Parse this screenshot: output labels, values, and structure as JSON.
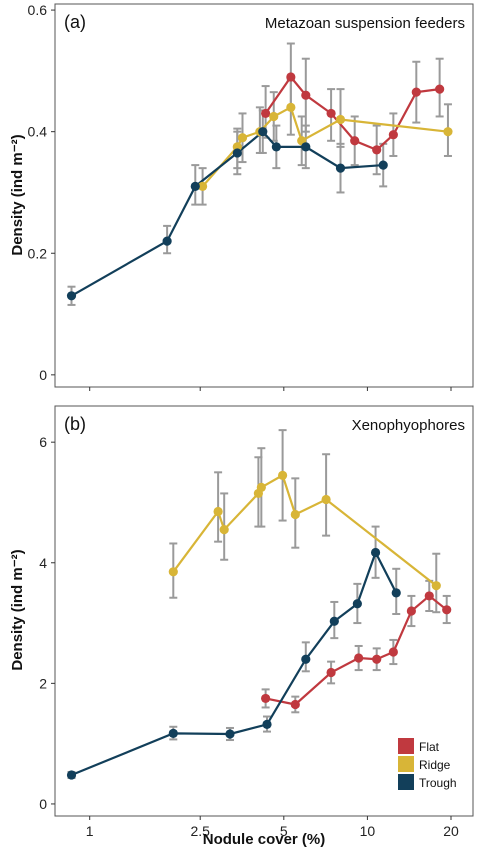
{
  "figure": {
    "ylabel": "Density (ind m⁻²)",
    "xlabel": "Nodule cover (%)",
    "legend": {
      "placement": "bottom-right of panel (b)",
      "entries": [
        {
          "name": "Flat",
          "color": "#c0393f"
        },
        {
          "name": "Ridge",
          "color": "#d8b537"
        },
        {
          "name": "Trough",
          "color": "#123f5a"
        }
      ]
    }
  },
  "colors": {
    "flat": "#c0393f",
    "ridge": "#d8b537",
    "trough": "#123f5a",
    "errorbar": "#9a9a9a",
    "panel_border": "#555555"
  },
  "chart_data": [
    {
      "type": "line",
      "panel": "(a)",
      "title": "Metazoan suspension feeders",
      "ylabel": "Density (ind m⁻²)",
      "xlabel": "Nodule cover (%)",
      "xscale": "log",
      "xlim": [
        0.75,
        24
      ],
      "ylim": [
        -0.02,
        0.61
      ],
      "xticks": [
        1,
        2.5,
        5,
        10,
        20
      ],
      "xtick_labels": [
        "1",
        "2.5",
        "5",
        "10",
        "20"
      ],
      "yticks": [
        0,
        0.2,
        0.4,
        0.6
      ],
      "ytick_labels": [
        "0",
        "0.2",
        "0.4",
        "0.6"
      ],
      "grid": false,
      "series": [
        {
          "name": "Flat",
          "color": "#c0393f",
          "points": [
            {
              "x": 4.3,
              "y": 0.43,
              "lo": 0.39,
              "hi": 0.475
            },
            {
              "x": 5.3,
              "y": 0.49,
              "lo": 0.44,
              "hi": 0.545
            },
            {
              "x": 6.0,
              "y": 0.46,
              "lo": 0.4,
              "hi": 0.52
            },
            {
              "x": 7.4,
              "y": 0.43,
              "lo": 0.385,
              "hi": 0.47
            },
            {
              "x": 9.0,
              "y": 0.385,
              "lo": 0.345,
              "hi": 0.425
            },
            {
              "x": 10.8,
              "y": 0.37,
              "lo": 0.33,
              "hi": 0.41
            },
            {
              "x": 12.4,
              "y": 0.395,
              "lo": 0.36,
              "hi": 0.43
            },
            {
              "x": 15.0,
              "y": 0.465,
              "lo": 0.415,
              "hi": 0.515
            },
            {
              "x": 18.2,
              "y": 0.47,
              "lo": 0.425,
              "hi": 0.52
            }
          ]
        },
        {
          "name": "Ridge",
          "color": "#d8b537",
          "points": [
            {
              "x": 2.55,
              "y": 0.31,
              "lo": 0.28,
              "hi": 0.34
            },
            {
              "x": 3.4,
              "y": 0.375,
              "lo": 0.34,
              "hi": 0.405
            },
            {
              "x": 3.55,
              "y": 0.39,
              "lo": 0.35,
              "hi": 0.43
            },
            {
              "x": 4.1,
              "y": 0.4,
              "lo": 0.365,
              "hi": 0.44
            },
            {
              "x": 4.6,
              "y": 0.425,
              "lo": 0.385,
              "hi": 0.465
            },
            {
              "x": 5.3,
              "y": 0.44,
              "lo": 0.395,
              "hi": 0.485
            },
            {
              "x": 5.8,
              "y": 0.385,
              "lo": 0.345,
              "hi": 0.425
            },
            {
              "x": 8.0,
              "y": 0.42,
              "lo": 0.375,
              "hi": 0.47
            },
            {
              "x": 19.5,
              "y": 0.4,
              "lo": 0.36,
              "hi": 0.445
            }
          ]
        },
        {
          "name": "Trough",
          "color": "#123f5a",
          "points": [
            {
              "x": 0.86,
              "y": 0.13,
              "lo": 0.115,
              "hi": 0.145
            },
            {
              "x": 1.9,
              "y": 0.22,
              "lo": 0.2,
              "hi": 0.245
            },
            {
              "x": 2.4,
              "y": 0.31,
              "lo": 0.28,
              "hi": 0.345
            },
            {
              "x": 3.4,
              "y": 0.365,
              "lo": 0.33,
              "hi": 0.4
            },
            {
              "x": 4.2,
              "y": 0.4,
              "lo": 0.365,
              "hi": 0.435
            },
            {
              "x": 4.7,
              "y": 0.375,
              "lo": 0.34,
              "hi": 0.41
            },
            {
              "x": 6.0,
              "y": 0.375,
              "lo": 0.34,
              "hi": 0.41
            },
            {
              "x": 8.0,
              "y": 0.34,
              "lo": 0.3,
              "hi": 0.38
            },
            {
              "x": 11.4,
              "y": 0.345,
              "lo": 0.31,
              "hi": 0.38
            }
          ]
        }
      ]
    },
    {
      "type": "line",
      "panel": "(b)",
      "title": "Xenophyophores",
      "ylabel": "Density (ind m⁻²)",
      "xlabel": "Nodule cover (%)",
      "xscale": "log",
      "xlim": [
        0.75,
        24
      ],
      "ylim": [
        -0.2,
        6.6
      ],
      "xticks": [
        1,
        2.5,
        5,
        10,
        20
      ],
      "xtick_labels": [
        "1",
        "2.5",
        "5",
        "10",
        "20"
      ],
      "yticks": [
        0,
        2,
        4,
        6
      ],
      "ytick_labels": [
        "0",
        "2",
        "4",
        "6"
      ],
      "grid": false,
      "series": [
        {
          "name": "Flat",
          "color": "#c0393f",
          "points": [
            {
              "x": 4.3,
              "y": 1.75,
              "lo": 1.6,
              "hi": 1.9
            },
            {
              "x": 5.5,
              "y": 1.65,
              "lo": 1.52,
              "hi": 1.78
            },
            {
              "x": 7.4,
              "y": 2.18,
              "lo": 2.0,
              "hi": 2.36
            },
            {
              "x": 9.3,
              "y": 2.42,
              "lo": 2.22,
              "hi": 2.62
            },
            {
              "x": 10.8,
              "y": 2.4,
              "lo": 2.22,
              "hi": 2.58
            },
            {
              "x": 12.4,
              "y": 2.52,
              "lo": 2.32,
              "hi": 2.72
            },
            {
              "x": 14.4,
              "y": 3.2,
              "lo": 2.95,
              "hi": 3.45
            },
            {
              "x": 16.7,
              "y": 3.45,
              "lo": 3.2,
              "hi": 3.7
            },
            {
              "x": 19.3,
              "y": 3.22,
              "lo": 3.0,
              "hi": 3.45
            }
          ]
        },
        {
          "name": "Ridge",
          "color": "#d8b537",
          "points": [
            {
              "x": 2.0,
              "y": 3.85,
              "lo": 3.42,
              "hi": 4.32
            },
            {
              "x": 2.9,
              "y": 4.85,
              "lo": 4.35,
              "hi": 5.5
            },
            {
              "x": 3.05,
              "y": 4.55,
              "lo": 4.05,
              "hi": 5.15
            },
            {
              "x": 4.05,
              "y": 5.15,
              "lo": 4.6,
              "hi": 5.75
            },
            {
              "x": 4.15,
              "y": 5.25,
              "lo": 4.6,
              "hi": 5.9
            },
            {
              "x": 4.95,
              "y": 5.45,
              "lo": 4.7,
              "hi": 6.2
            },
            {
              "x": 5.5,
              "y": 4.8,
              "lo": 4.25,
              "hi": 5.4
            },
            {
              "x": 7.1,
              "y": 5.05,
              "lo": 4.45,
              "hi": 5.8
            },
            {
              "x": 17.7,
              "y": 3.62,
              "lo": 3.18,
              "hi": 4.15
            }
          ]
        },
        {
          "name": "Trough",
          "color": "#123f5a",
          "points": [
            {
              "x": 0.86,
              "y": 0.48,
              "lo": 0.43,
              "hi": 0.53
            },
            {
              "x": 2.0,
              "y": 1.17,
              "lo": 1.07,
              "hi": 1.28
            },
            {
              "x": 3.2,
              "y": 1.16,
              "lo": 1.06,
              "hi": 1.26
            },
            {
              "x": 4.35,
              "y": 1.32,
              "lo": 1.2,
              "hi": 1.45
            },
            {
              "x": 6.0,
              "y": 2.4,
              "lo": 2.2,
              "hi": 2.68
            },
            {
              "x": 7.6,
              "y": 3.03,
              "lo": 2.75,
              "hi": 3.35
            },
            {
              "x": 9.2,
              "y": 3.32,
              "lo": 3.0,
              "hi": 3.65
            },
            {
              "x": 10.7,
              "y": 4.17,
              "lo": 3.75,
              "hi": 4.6
            },
            {
              "x": 12.7,
              "y": 3.5,
              "lo": 3.15,
              "hi": 3.9
            }
          ]
        }
      ]
    }
  ]
}
